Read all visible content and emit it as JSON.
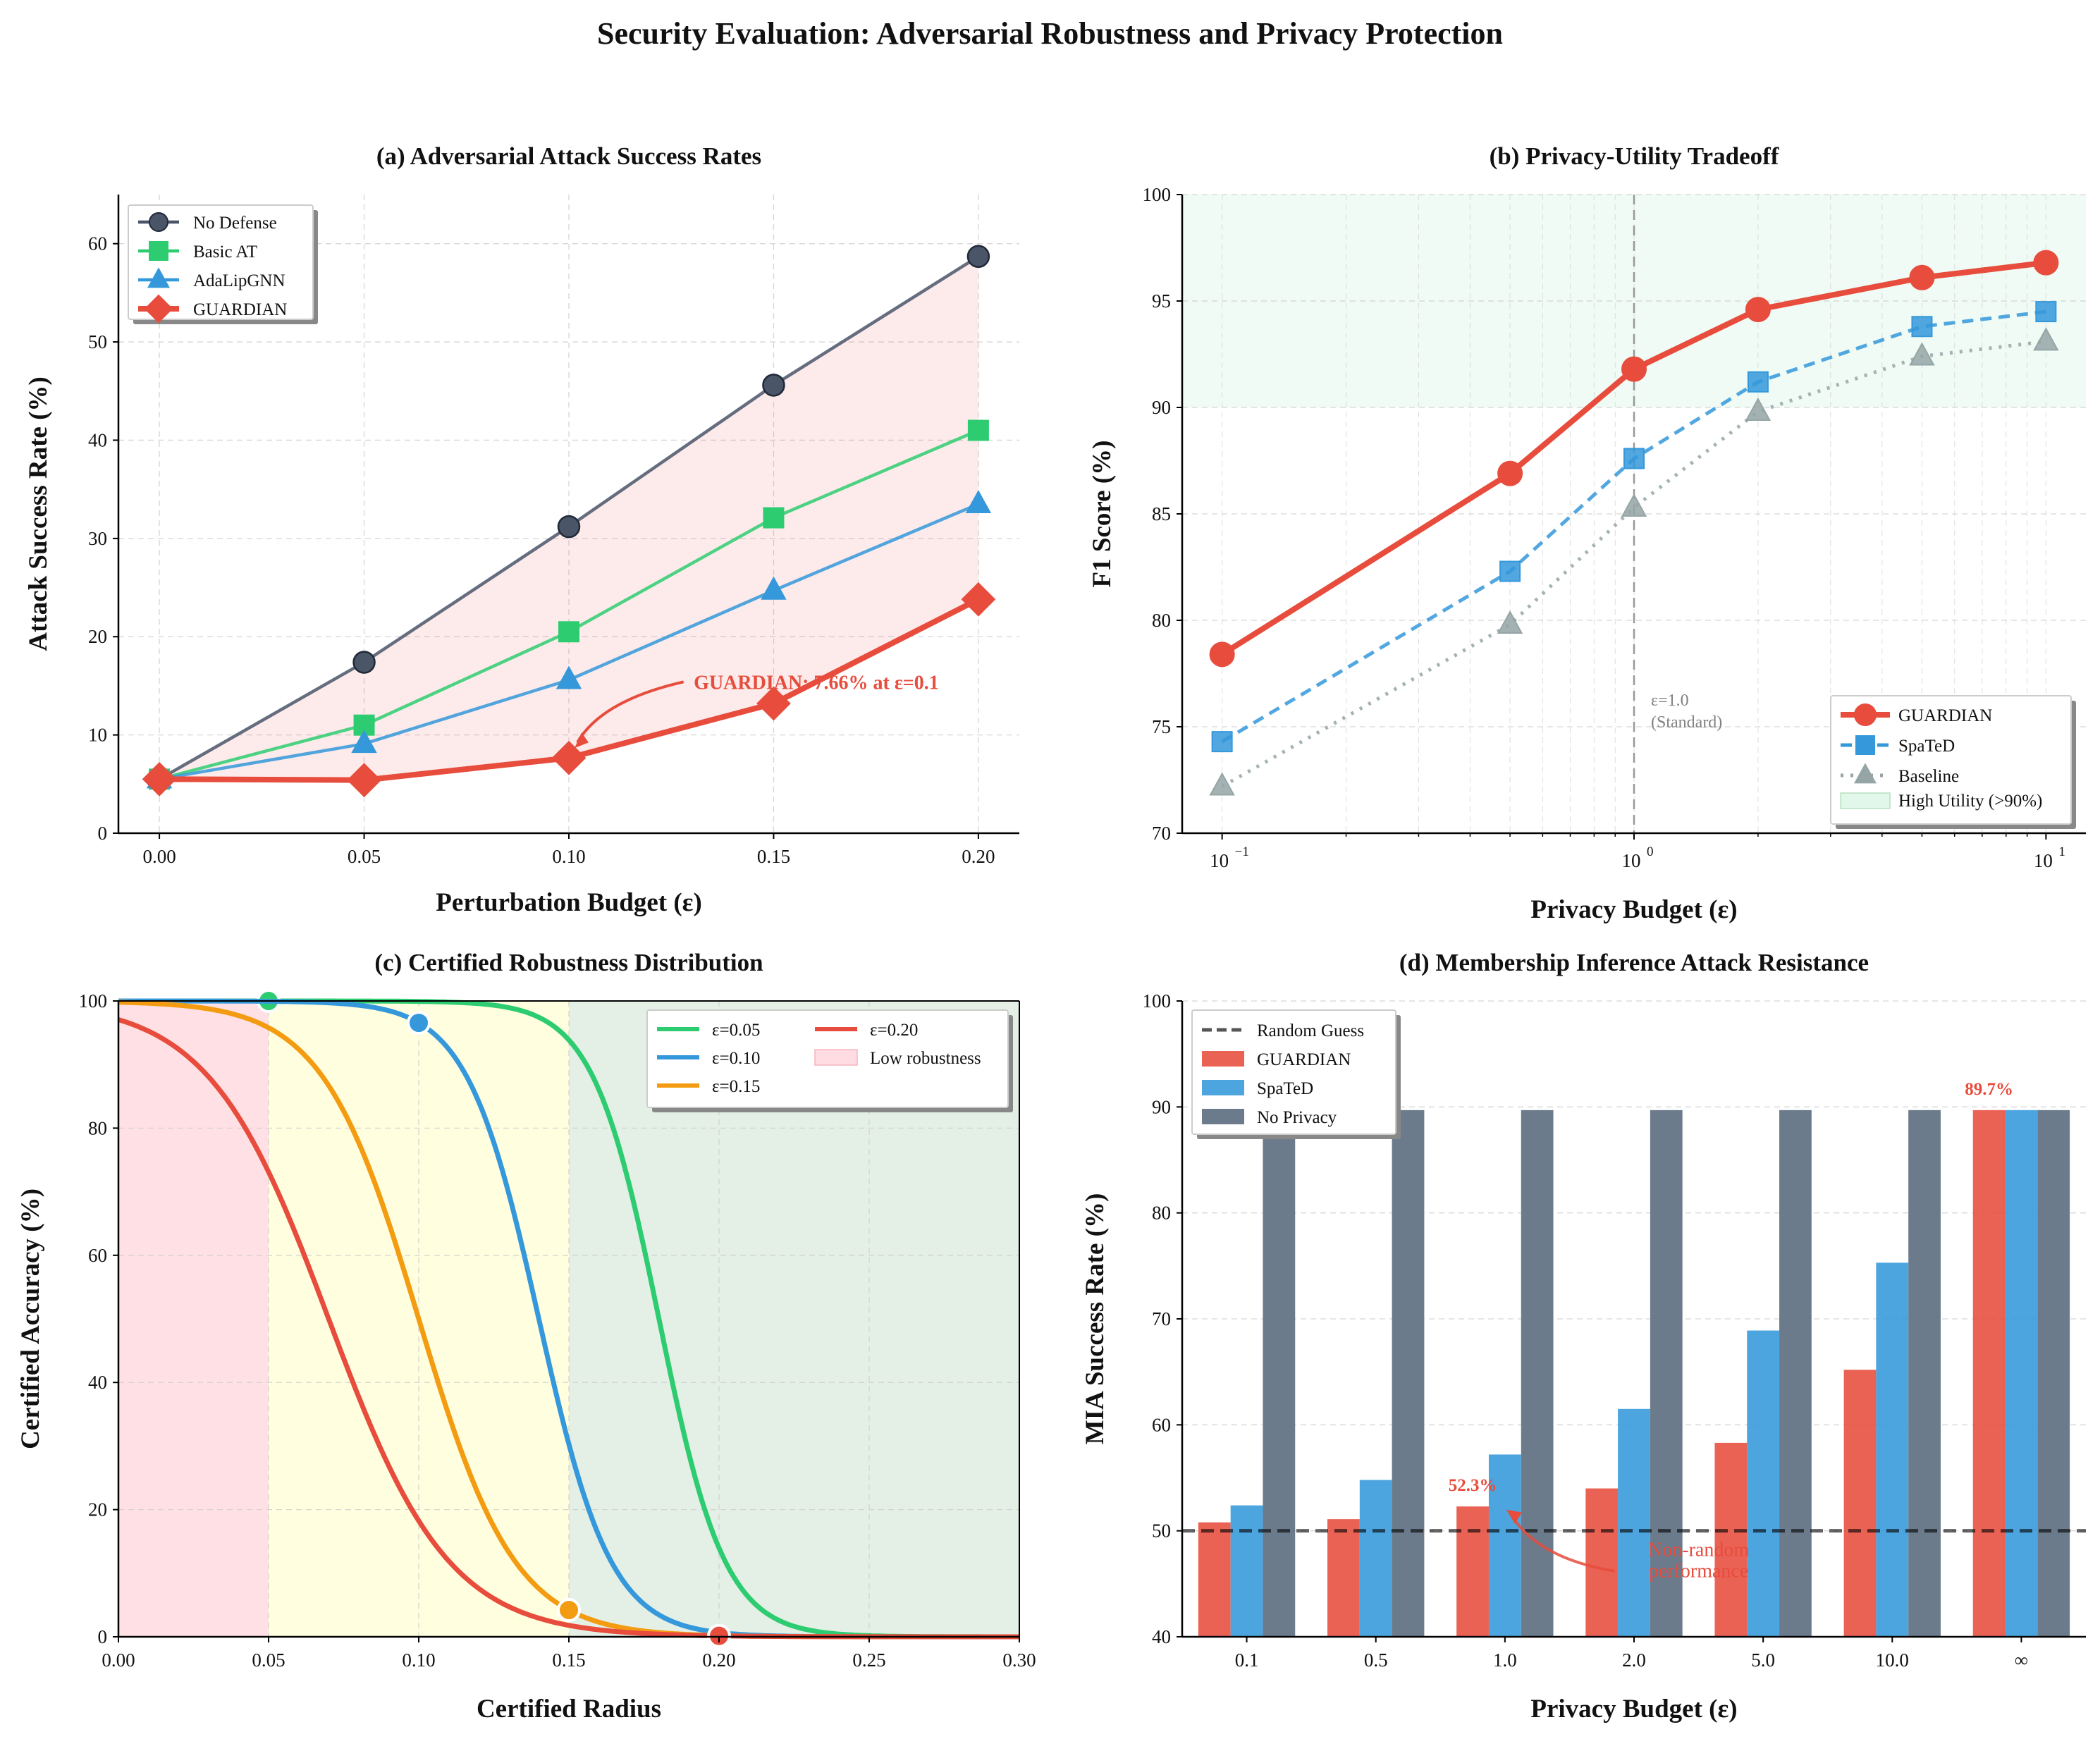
{
  "figure": {
    "title": "Security Evaluation: Adversarial Robustness and Privacy Protection"
  },
  "colors": {
    "guardian": "#e74c3c",
    "nodef": "#4a5568",
    "basic": "#2ecc71",
    "ada": "#3498db",
    "spated": "#3498db",
    "baseline": "#95a5a6",
    "noprivacy": "#6b7b8c",
    "eps015": "#f39c12"
  },
  "chart_data": [
    {
      "id": "a",
      "type": "line",
      "title": "(a) Adversarial Attack Success Rates",
      "xlabel": "Perturbation Budget (ε)",
      "ylabel": "Attack Success Rate (%)",
      "x": [
        0.0,
        0.05,
        0.1,
        0.15,
        0.2
      ],
      "xticks": [
        "0.00",
        "0.05",
        "0.10",
        "0.15",
        "0.20"
      ],
      "yticks": [
        "0",
        "10",
        "20",
        "30",
        "40",
        "50",
        "60"
      ],
      "xlim": [
        -0.01,
        0.21
      ],
      "ylim": [
        0,
        65
      ],
      "grid": true,
      "legend": "upper left",
      "series": [
        {
          "name": "No Defense",
          "values": [
            5.5,
            17.4,
            31.2,
            45.6,
            58.7
          ],
          "marker": "circle"
        },
        {
          "name": "Basic AT",
          "values": [
            5.5,
            11.0,
            20.5,
            32.1,
            41.0
          ],
          "marker": "square"
        },
        {
          "name": "AdaLipGNN",
          "values": [
            5.5,
            9.1,
            15.6,
            24.7,
            33.5
          ],
          "marker": "triangle"
        },
        {
          "name": "GUARDIAN",
          "values": [
            5.5,
            5.4,
            7.66,
            13.2,
            23.8
          ],
          "marker": "diamond"
        }
      ],
      "annotation": "GUARDIAN: 7.66% at ε=0.1"
    },
    {
      "id": "b",
      "type": "line",
      "title": "(b) Privacy-Utility Tradeoff",
      "xlabel": "Privacy Budget (ε)",
      "ylabel": "F1 Score (%)",
      "xscale": "log",
      "x": [
        0.1,
        0.5,
        1.0,
        2.0,
        5.0,
        10.0
      ],
      "xticks": [
        "10",
        "10",
        "10"
      ],
      "xtick_exponents": [
        "−1",
        "0",
        "1"
      ],
      "yticks": [
        "70",
        "75",
        "80",
        "85",
        "90",
        "95",
        "100"
      ],
      "xlim": [
        0.08,
        12.5
      ],
      "ylim": [
        70,
        100
      ],
      "grid": true,
      "legend": "lower right",
      "series": [
        {
          "name": "GUARDIAN",
          "values": [
            78.4,
            86.9,
            91.8,
            94.6,
            96.1,
            96.8
          ]
        },
        {
          "name": "SpaTeD",
          "values": [
            74.3,
            82.3,
            87.6,
            91.2,
            93.8,
            94.5
          ]
        },
        {
          "name": "Baseline",
          "values": [
            72.2,
            79.8,
            85.3,
            89.8,
            92.4,
            93.1
          ]
        }
      ],
      "shade_label": "High Utility (>90%)",
      "vline_label": [
        "ε=1.0",
        "(Standard)"
      ]
    },
    {
      "id": "c",
      "type": "line",
      "title": "(c) Certified Robustness Distribution",
      "xlabel": "Certified Radius",
      "ylabel": "Certified Accuracy (%)",
      "xticks": [
        "0.00",
        "0.05",
        "0.10",
        "0.15",
        "0.20",
        "0.25",
        "0.30"
      ],
      "yticks": [
        "0",
        "20",
        "40",
        "60",
        "80",
        "100"
      ],
      "xlim": [
        0,
        0.3
      ],
      "ylim": [
        0,
        100
      ],
      "grid": true,
      "legend": "upper right",
      "series": [
        {
          "name": "ε=0.05",
          "center": 0.18,
          "width": 0.011,
          "marker_x": 0.05
        },
        {
          "name": "ε=0.10",
          "center": 0.14,
          "width": 0.012,
          "marker_x": 0.1
        },
        {
          "name": "ε=0.15",
          "center": 0.1,
          "width": 0.016,
          "marker_x": 0.15
        },
        {
          "name": "ε=0.20",
          "center": 0.07,
          "width": 0.02,
          "marker_x": 0.2
        }
      ],
      "shade_label": "Low robustness"
    },
    {
      "id": "d",
      "type": "bar",
      "title": "(d) Membership Inference Attack Resistance",
      "xlabel": "Privacy Budget (ε)",
      "ylabel": "MIA Success Rate (%)",
      "categories": [
        "0.1",
        "0.5",
        "1.0",
        "2.0",
        "5.0",
        "10.0",
        "∞"
      ],
      "yticks": [
        "40",
        "50",
        "60",
        "70",
        "80",
        "90",
        "100"
      ],
      "ylim": [
        40,
        100
      ],
      "grid": true,
      "legend": "upper left",
      "series": [
        {
          "name": "GUARDIAN",
          "values": [
            50.8,
            51.1,
            52.3,
            54.0,
            58.3,
            65.2,
            89.7
          ]
        },
        {
          "name": "SpaTeD",
          "values": [
            52.4,
            54.8,
            57.2,
            61.5,
            68.9,
            75.3,
            89.7
          ]
        },
        {
          "name": "No Privacy",
          "values": [
            89.7,
            89.7,
            89.7,
            89.7,
            89.7,
            89.7,
            89.7
          ]
        }
      ],
      "reference_line": {
        "name": "Random Guess",
        "value": 50
      },
      "labels": [
        "52.3%",
        "89.7%"
      ],
      "annotation": [
        "Non-random",
        "performance"
      ]
    }
  ]
}
